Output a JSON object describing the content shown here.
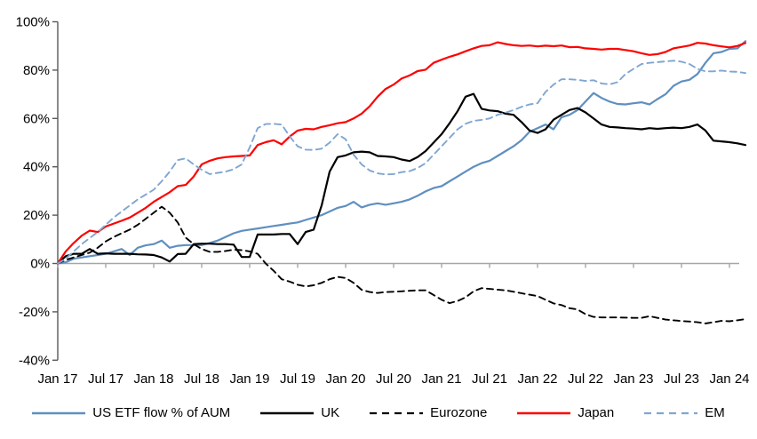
{
  "chart_data": {
    "type": "line",
    "title": "",
    "xlabel": "",
    "ylabel": "",
    "grid": false,
    "legend_position": "bottom",
    "ylim": [
      -40,
      100
    ],
    "y_tick_labels": [
      "100%",
      "80%",
      "60%",
      "40%",
      "20%",
      "0%",
      "-20%",
      "-40%"
    ],
    "y_tick_values": [
      100,
      80,
      60,
      40,
      20,
      0,
      -20,
      -40
    ],
    "x_tick_labels": [
      "Jan 17",
      "Jul 17",
      "Jan 18",
      "Jul 18",
      "Jan 19",
      "Jul 19",
      "Jan 20",
      "Jul 20",
      "Jan 21",
      "Jul 21",
      "Jan 22",
      "Jul 22",
      "Jan 23",
      "Jul 23",
      "Jan 24"
    ],
    "x_tick_month_positions": [
      0,
      6,
      12,
      18,
      24,
      30,
      36,
      42,
      48,
      54,
      60,
      66,
      72,
      78,
      84
    ],
    "x_unit": "months since Jan 2017",
    "zero_line_color": "#a6a6a6",
    "axis_color": "#595959",
    "series": [
      {
        "name": "US ETF flow % of AUM",
        "color": "#5f8fc0",
        "dash": "solid",
        "values": [
          0,
          0.5,
          2,
          2.5,
          3,
          3.5,
          4,
          5,
          6,
          3.5,
          6.5,
          7.5,
          8,
          9.5,
          6.5,
          7.3,
          7.6,
          7.6,
          7.6,
          8.5,
          9.5,
          11,
          12.5,
          13.5,
          14,
          14.5,
          15,
          15.5,
          16,
          16.5,
          17,
          18,
          19,
          20,
          21.5,
          23,
          23.8,
          25.5,
          23.2,
          24.3,
          24.9,
          24.3,
          24.9,
          25.5,
          26.5,
          28,
          29.8,
          31.2,
          32,
          34,
          36,
          38,
          40,
          41.5,
          42.5,
          44.5,
          46.5,
          48.5,
          51,
          54.5,
          56,
          57.5,
          55.5,
          60.5,
          61.5,
          63.5,
          67,
          70.5,
          68.5,
          67,
          66,
          65.8,
          66.3,
          66.7,
          65.8,
          68,
          70,
          73.5,
          75.3,
          76,
          78.4,
          83,
          87,
          87.5,
          88.8,
          89,
          92
        ]
      },
      {
        "name": "UK",
        "color": "#000000",
        "dash": "solid",
        "values": [
          0,
          3,
          4,
          4,
          6,
          4,
          4.2,
          4,
          4,
          4,
          3.8,
          3.7,
          3.5,
          2.5,
          0.8,
          3.9,
          4,
          8,
          8.2,
          8.2,
          8,
          8,
          7.8,
          2.7,
          2.7,
          12,
          12,
          12,
          12.2,
          12.2,
          8,
          13,
          14,
          24,
          38,
          44,
          44.7,
          46,
          46.3,
          46,
          44.5,
          44.3,
          44,
          43,
          42.4,
          44,
          46.5,
          50,
          53.5,
          58,
          63,
          69,
          70.2,
          64,
          63.3,
          63,
          62,
          61.5,
          58.5,
          55,
          54,
          55.5,
          59.5,
          61.5,
          63.5,
          64.3,
          62.5,
          60,
          57.5,
          56.5,
          56.3,
          56,
          55.8,
          55.5,
          56,
          55.7,
          56,
          56.2,
          56,
          56.5,
          57.5,
          55,
          50.8,
          50.5,
          50.2,
          49.7,
          49
        ]
      },
      {
        "name": "Eurozone",
        "color": "#000000",
        "dash": "dashed",
        "values": [
          0,
          1.5,
          2.5,
          3.5,
          4.5,
          6.5,
          9.1,
          11,
          12.5,
          14,
          16,
          18.5,
          21,
          23.5,
          21,
          17,
          10.7,
          8,
          6,
          4.8,
          4.8,
          5.2,
          5.7,
          5.5,
          5,
          4,
          0,
          -3,
          -6.5,
          -7.5,
          -8.8,
          -9.5,
          -9,
          -8,
          -6.5,
          -5.5,
          -6,
          -8,
          -10.9,
          -11.8,
          -12.2,
          -11.8,
          -11.7,
          -11.5,
          -11.3,
          -11.1,
          -11.1,
          -13,
          -15,
          -16.4,
          -15.5,
          -14,
          -11.5,
          -10.2,
          -10.5,
          -10.8,
          -11.1,
          -11.7,
          -12.3,
          -12.9,
          -13.5,
          -15,
          -16.5,
          -17.2,
          -18.5,
          -19,
          -21,
          -22.1,
          -22.3,
          -22.3,
          -22.3,
          -22.4,
          -22.5,
          -22.5,
          -21.8,
          -22.5,
          -23.2,
          -23.5,
          -23.8,
          -24,
          -24.3,
          -24.8,
          -24.3,
          -23.7,
          -23.9,
          -23.5,
          -23
        ]
      },
      {
        "name": "Japan",
        "color": "#fe0000",
        "dash": "solid",
        "values": [
          0,
          5,
          8.5,
          11.5,
          13.6,
          13,
          15.3,
          16.5,
          17.7,
          19,
          21,
          23,
          25.5,
          27.5,
          29.5,
          32,
          32.5,
          36,
          41,
          42.5,
          43.5,
          44,
          44.3,
          44.5,
          44.7,
          49,
          50.2,
          51,
          49.3,
          52.5,
          55,
          55.7,
          55.5,
          56.5,
          57.2,
          58,
          58.5,
          60,
          62,
          65,
          69,
          72.2,
          74,
          76.5,
          77.8,
          79.6,
          80.2,
          83,
          84.3,
          85.5,
          86.5,
          87.8,
          89,
          90,
          90.3,
          91.5,
          90.8,
          90.3,
          90,
          90.2,
          89.8,
          90.1,
          89.9,
          90.2,
          89.5,
          89.6,
          89,
          88.8,
          88.5,
          88.8,
          88.8,
          88.3,
          87.8,
          87,
          86.3,
          86.6,
          87.5,
          89,
          89.6,
          90.2,
          91.3,
          91,
          90.3,
          89.8,
          89.4,
          90,
          91.2
        ]
      },
      {
        "name": "EM",
        "color": "#7fa6d1",
        "dash": "dashed",
        "values": [
          0,
          2,
          5,
          8,
          10.5,
          13,
          16,
          19,
          21.5,
          24,
          26.5,
          28.5,
          30.5,
          34,
          38,
          42.8,
          43.5,
          41,
          38.8,
          37,
          37.5,
          38,
          39,
          41,
          48,
          56,
          57.7,
          57.8,
          57.5,
          52.6,
          48.5,
          47.1,
          47,
          47.5,
          50,
          53.5,
          51.4,
          45,
          41,
          38.5,
          37.3,
          36.8,
          37,
          37.8,
          38.2,
          39.5,
          41.5,
          45,
          48.5,
          52,
          55.5,
          57.8,
          59,
          59.4,
          60,
          61.5,
          62.4,
          63.5,
          64.8,
          65.8,
          66.3,
          71,
          74,
          76.2,
          76.2,
          76,
          75.5,
          75.8,
          74.5,
          74.1,
          75,
          78.4,
          80.5,
          82.5,
          83,
          83.3,
          83.6,
          83.9,
          83.5,
          82.5,
          80.5,
          79.5,
          79.5,
          79.8,
          79.4,
          79.3,
          78.8
        ]
      }
    ]
  },
  "legend": {
    "items": [
      {
        "label": "US ETF flow % of AUM"
      },
      {
        "label": "UK"
      },
      {
        "label": "Eurozone"
      },
      {
        "label": "Japan"
      },
      {
        "label": "EM"
      }
    ]
  }
}
